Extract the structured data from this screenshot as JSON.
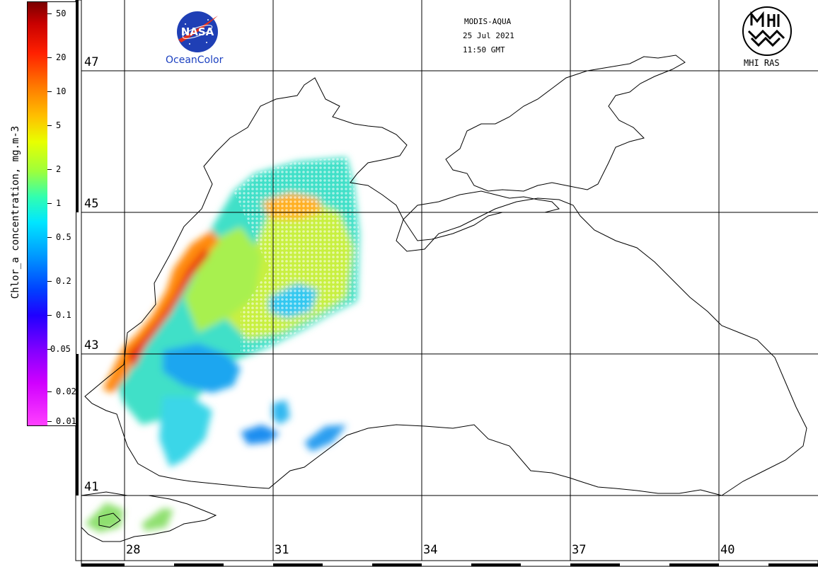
{
  "header": {
    "satellite": "MODIS-AQUA",
    "date": "25 Jul 2021",
    "time": "11:50 GMT"
  },
  "logos": {
    "nasa_text": "NASA",
    "oceancolor_text": "OceanColor",
    "mhi_text": "MHI RAS"
  },
  "colorbar": {
    "title": "Chlor_a concentration, mg.m-3",
    "ticks": [
      "50",
      "20",
      "10",
      "5",
      "2",
      "1",
      "0.5",
      "0.2",
      "0.1",
      "0.05",
      "0.02",
      "0.01"
    ],
    "scale": "log",
    "range": [
      0.01,
      50
    ]
  },
  "grid": {
    "latitudes": [
      "47",
      "45",
      "43",
      "41"
    ],
    "longitudes": [
      "28",
      "31",
      "34",
      "37",
      "40"
    ]
  },
  "colors": {
    "coastline": "#000000",
    "gridline": "#000000",
    "background": "#ffffff",
    "nasa_blue": "#1f3fb5",
    "nasa_red": "#e0301e"
  }
}
